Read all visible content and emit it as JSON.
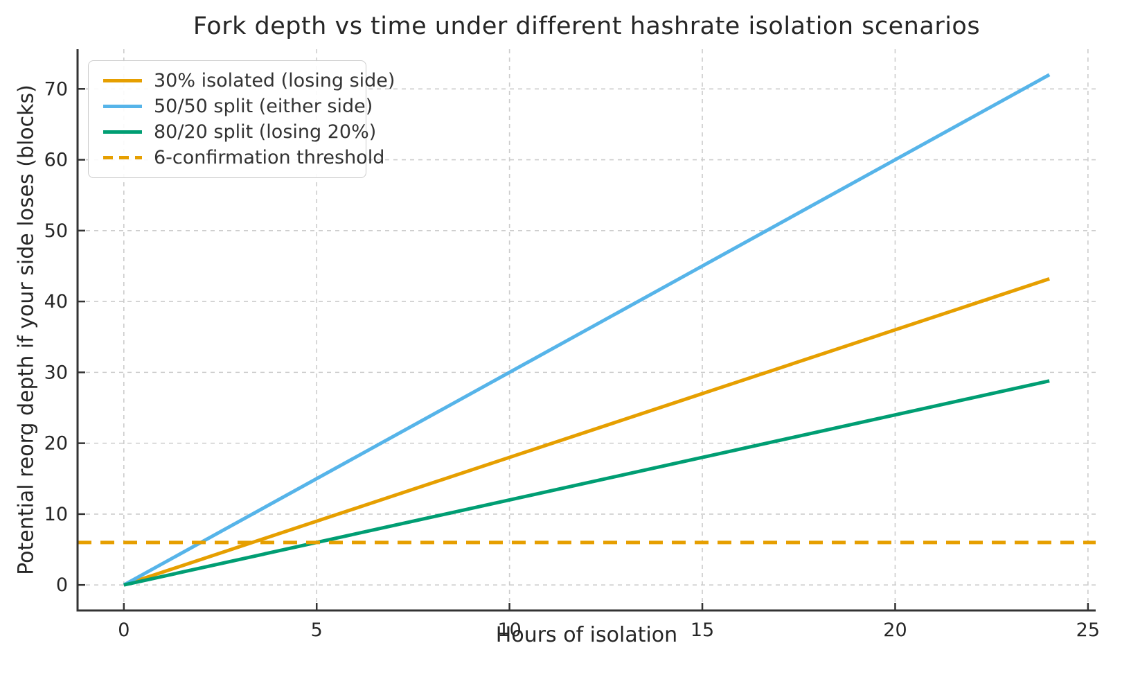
{
  "title": "Fork depth vs time under different hashrate isolation scenarios",
  "chart_data": {
    "type": "line",
    "title": "Fork depth vs time under different hashrate isolation scenarios",
    "xlabel": "Hours of isolation",
    "ylabel": "Potential reorg depth if your side loses (blocks)",
    "xlim": [
      -1.2,
      25.2
    ],
    "ylim": [
      -3.6,
      75.6
    ],
    "x_ticks": [
      0,
      5,
      10,
      15,
      20,
      25
    ],
    "y_ticks": [
      0,
      10,
      20,
      30,
      40,
      50,
      60,
      70
    ],
    "grid": true,
    "grid_style": "dashed",
    "legend_position": "upper-left",
    "series": [
      {
        "name": "30% isolated (losing side)",
        "color": "#E69F00",
        "style": "solid",
        "slope_blocks_per_hour": 1.8,
        "x": [
          0,
          24
        ],
        "y": [
          0,
          43.2
        ]
      },
      {
        "name": "50/50 split (either side)",
        "color": "#56B4E9",
        "style": "solid",
        "slope_blocks_per_hour": 3.0,
        "x": [
          0,
          24
        ],
        "y": [
          0,
          72
        ]
      },
      {
        "name": "80/20 split (losing 20%)",
        "color": "#009E73",
        "style": "solid",
        "slope_blocks_per_hour": 1.2,
        "x": [
          0,
          24
        ],
        "y": [
          0,
          28.8
        ]
      },
      {
        "name": "6-confirmation threshold",
        "color": "#E69F00",
        "style": "dashed",
        "y_const": 6,
        "x": [
          -1.2,
          25.2
        ],
        "y": [
          6,
          6
        ]
      }
    ],
    "colors": {
      "background": "#ffffff",
      "grid": "#cccccc",
      "spine": "#333333",
      "text": "#262626",
      "legend_text": "#333333",
      "orange": "#E69F00",
      "sky_blue": "#56B4E9",
      "green": "#009E73"
    }
  }
}
